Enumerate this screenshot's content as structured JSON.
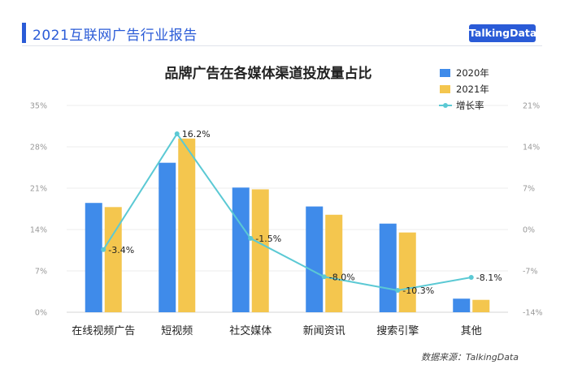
{
  "header": {
    "report_title": "2021互联网广告行业报告",
    "brand": "TalkingData",
    "accent_color": "#2a5bd7"
  },
  "source_note": "数据来源：TalkingData",
  "chart_data": {
    "type": "bar",
    "title": "品牌广告在各媒体渠道投放量占比",
    "categories": [
      "在线视频广告",
      "短视频",
      "社交媒体",
      "新闻资讯",
      "搜索引擎",
      "其他"
    ],
    "series": [
      {
        "name": "2020年",
        "type": "bar",
        "axis": "left",
        "color": "#3f8bea",
        "values": [
          18.5,
          25.3,
          21.1,
          17.9,
          15.0,
          2.3
        ]
      },
      {
        "name": "2021年",
        "type": "bar",
        "axis": "left",
        "color": "#f4c64e",
        "values": [
          17.8,
          29.4,
          20.8,
          16.5,
          13.5,
          2.1
        ]
      },
      {
        "name": "增长率",
        "type": "line",
        "axis": "right",
        "color": "#5bc9d4",
        "values": [
          -3.4,
          16.2,
          -1.5,
          -8.0,
          -10.3,
          -8.1
        ]
      }
    ],
    "data_labels": [
      "-3.4%",
      "16.2%",
      "-1.5%",
      "-8.0%",
      "-10.3%",
      "-8.1%"
    ],
    "y_left": {
      "ticks": [
        0,
        7,
        14,
        21,
        28,
        35
      ],
      "tick_labels": [
        "0%",
        "7%",
        "14%",
        "21%",
        "28%",
        "35%"
      ],
      "range": [
        0,
        35
      ]
    },
    "y_right": {
      "ticks": [
        -14,
        -7,
        0,
        7,
        14,
        21
      ],
      "tick_labels": [
        "-14%",
        "-7%",
        "0%",
        "7%",
        "14%",
        "21%"
      ],
      "range": [
        -14,
        21
      ]
    },
    "grid": true,
    "legend_position": "top-right"
  }
}
